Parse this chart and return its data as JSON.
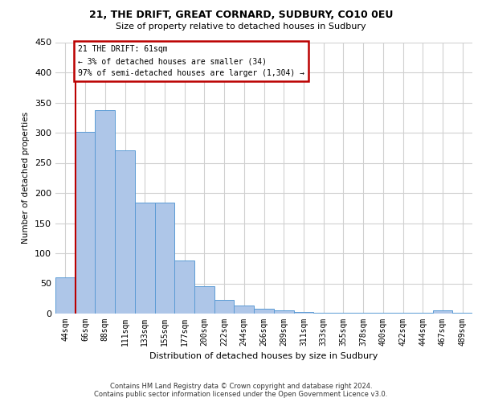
{
  "title1": "21, THE DRIFT, GREAT CORNARD, SUDBURY, CO10 0EU",
  "title2": "Size of property relative to detached houses in Sudbury",
  "xlabel": "Distribution of detached houses by size in Sudbury",
  "ylabel": "Number of detached properties",
  "categories": [
    "44sqm",
    "66sqm",
    "88sqm",
    "111sqm",
    "133sqm",
    "155sqm",
    "177sqm",
    "200sqm",
    "222sqm",
    "244sqm",
    "266sqm",
    "289sqm",
    "311sqm",
    "333sqm",
    "355sqm",
    "378sqm",
    "400sqm",
    "422sqm",
    "444sqm",
    "467sqm",
    "489sqm"
  ],
  "values": [
    60,
    302,
    338,
    271,
    184,
    184,
    88,
    45,
    23,
    14,
    8,
    5,
    3,
    2,
    2,
    1,
    1,
    1,
    1,
    5,
    1
  ],
  "bar_color": "#aec6e8",
  "bar_edge_color": "#5b9bd5",
  "property_line_color": "#bb0000",
  "annotation_text": "21 THE DRIFT: 61sqm\n← 3% of detached houses are smaller (34)\n97% of semi-detached houses are larger (1,304) →",
  "annotation_box_color": "#bb0000",
  "ylim": [
    0,
    450
  ],
  "yticks": [
    0,
    50,
    100,
    150,
    200,
    250,
    300,
    350,
    400,
    450
  ],
  "grid_color": "#d0d0d0",
  "background_color": "#ffffff",
  "footer1": "Contains HM Land Registry data © Crown copyright and database right 2024.",
  "footer2": "Contains public sector information licensed under the Open Government Licence v3.0."
}
